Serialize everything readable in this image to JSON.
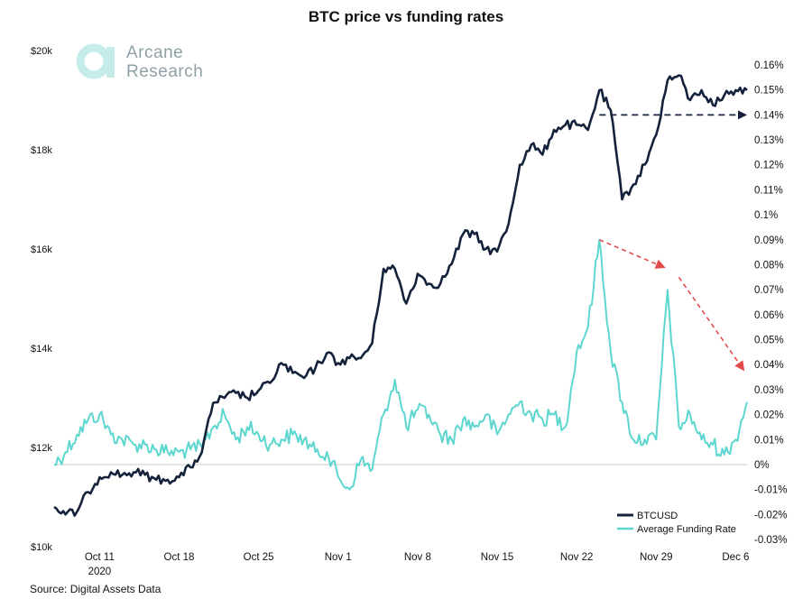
{
  "title": "BTC price vs funding rates",
  "source": "Source: Digital Assets Data",
  "logo": {
    "line1": "Arcane",
    "line2": "Research"
  },
  "colors": {
    "btc": "#14223b",
    "funding": "#5dd6cf",
    "annotation": "#e34b4b",
    "zero_line": "#c8c8c8"
  },
  "chart_data": {
    "type": "line",
    "title": "BTC price vs funding rates",
    "x_ticks": [
      "Oct 11",
      "Oct 18",
      "Oct 25",
      "Nov 1",
      "Nov 8",
      "Nov 15",
      "Nov 22",
      "Nov 29",
      "Dec 6"
    ],
    "x_year_label": "2020",
    "x_range": [
      "2020-10-07",
      "2020-12-07"
    ],
    "y_left": {
      "ticks": [
        "$10k",
        "$12k",
        "$14k",
        "$16k",
        "$18k",
        "$20k"
      ],
      "range": [
        10000,
        20000
      ]
    },
    "y_right": {
      "ticks": [
        "-0.03%",
        "-0.02%",
        "-0.01%",
        "0%",
        "0.01%",
        "0.02%",
        "0.03%",
        "0.04%",
        "0.05%",
        "0.06%",
        "0.07%",
        "0.08%",
        "0.09%",
        "0.1%",
        "0.11%",
        "0.12%",
        "0.13%",
        "0.14%",
        "0.15%",
        "0.16%"
      ],
      "range": [
        -0.03,
        0.165
      ]
    },
    "legend_position": "bottom-right",
    "series": [
      {
        "name": "BTCUSD",
        "axis": "left",
        "x": [
          "2020-10-07",
          "2020-10-08",
          "2020-10-09",
          "2020-10-10",
          "2020-10-11",
          "2020-10-12",
          "2020-10-13",
          "2020-10-14",
          "2020-10-15",
          "2020-10-16",
          "2020-10-17",
          "2020-10-18",
          "2020-10-19",
          "2020-10-20",
          "2020-10-21",
          "2020-10-22",
          "2020-10-23",
          "2020-10-24",
          "2020-10-25",
          "2020-10-26",
          "2020-10-27",
          "2020-10-28",
          "2020-10-29",
          "2020-10-30",
          "2020-10-31",
          "2020-11-01",
          "2020-11-02",
          "2020-11-03",
          "2020-11-04",
          "2020-11-05",
          "2020-11-06",
          "2020-11-07",
          "2020-11-08",
          "2020-11-09",
          "2020-11-10",
          "2020-11-11",
          "2020-11-12",
          "2020-11-13",
          "2020-11-14",
          "2020-11-15",
          "2020-11-16",
          "2020-11-17",
          "2020-11-18",
          "2020-11-19",
          "2020-11-20",
          "2020-11-21",
          "2020-11-22",
          "2020-11-23",
          "2020-11-24",
          "2020-11-25",
          "2020-11-26",
          "2020-11-27",
          "2020-11-28",
          "2020-11-29",
          "2020-11-30",
          "2020-12-01",
          "2020-12-02",
          "2020-12-03",
          "2020-12-04",
          "2020-12-05",
          "2020-12-06",
          "2020-12-07"
        ],
        "values": [
          10800,
          10650,
          10700,
          11100,
          11400,
          11500,
          11450,
          11500,
          11450,
          11350,
          11350,
          11400,
          11600,
          11900,
          12900,
          13000,
          13100,
          13000,
          13150,
          13300,
          13700,
          13500,
          13400,
          13600,
          13900,
          13700,
          13800,
          13800,
          14100,
          15600,
          15600,
          14900,
          15500,
          15300,
          15300,
          15700,
          16300,
          16300,
          16000,
          15950,
          16500,
          17700,
          18100,
          17900,
          18400,
          18500,
          18500,
          18400,
          19200,
          18800,
          17000,
          17300,
          17700,
          18300,
          19400,
          19500,
          19000,
          19200,
          18900,
          19100,
          19200,
          19200
        ]
      },
      {
        "name": "Average Funding Rate",
        "axis": "right",
        "x": [
          "2020-10-07",
          "2020-10-08",
          "2020-10-09",
          "2020-10-10",
          "2020-10-11",
          "2020-10-12",
          "2020-10-13",
          "2020-10-14",
          "2020-10-15",
          "2020-10-16",
          "2020-10-17",
          "2020-10-18",
          "2020-10-19",
          "2020-10-20",
          "2020-10-21",
          "2020-10-22",
          "2020-10-23",
          "2020-10-24",
          "2020-10-25",
          "2020-10-26",
          "2020-10-27",
          "2020-10-28",
          "2020-10-29",
          "2020-10-30",
          "2020-10-31",
          "2020-11-01",
          "2020-11-02",
          "2020-11-03",
          "2020-11-04",
          "2020-11-05",
          "2020-11-06",
          "2020-11-07",
          "2020-11-08",
          "2020-11-09",
          "2020-11-10",
          "2020-11-11",
          "2020-11-12",
          "2020-11-13",
          "2020-11-14",
          "2020-11-15",
          "2020-11-16",
          "2020-11-17",
          "2020-11-18",
          "2020-11-19",
          "2020-11-20",
          "2020-11-21",
          "2020-11-22",
          "2020-11-23",
          "2020-11-24",
          "2020-11-25",
          "2020-11-26",
          "2020-11-27",
          "2020-11-28",
          "2020-11-29",
          "2020-11-30",
          "2020-12-01",
          "2020-12-02",
          "2020-12-03",
          "2020-12-04",
          "2020-12-05",
          "2020-12-06",
          "2020-12-07"
        ],
        "values": [
          0.0,
          0.005,
          0.012,
          0.018,
          0.02,
          0.012,
          0.01,
          0.008,
          0.008,
          0.006,
          0.005,
          0.005,
          0.006,
          0.007,
          0.015,
          0.02,
          0.01,
          0.015,
          0.012,
          0.008,
          0.01,
          0.012,
          0.01,
          0.005,
          0.005,
          -0.005,
          -0.01,
          0.002,
          -0.002,
          0.02,
          0.034,
          0.015,
          0.022,
          0.02,
          0.012,
          0.01,
          0.018,
          0.015,
          0.02,
          0.012,
          0.02,
          0.025,
          0.02,
          0.018,
          0.02,
          0.015,
          0.045,
          0.055,
          0.09,
          0.045,
          0.025,
          0.01,
          0.01,
          0.01,
          0.07,
          0.015,
          0.02,
          0.01,
          0.008,
          0.004,
          0.01,
          0.025
        ]
      }
    ],
    "annotations": [
      {
        "type": "dashed-arrow",
        "color": "dark",
        "from": [
          "2020-11-24",
          0.14
        ],
        "to": [
          "2020-12-07",
          0.14
        ]
      },
      {
        "type": "dashed-arrow",
        "color": "red",
        "from": [
          "2020-11-24",
          0.09
        ],
        "to": [
          "2020-11-30",
          0.079
        ]
      },
      {
        "type": "dashed-arrow",
        "color": "red",
        "from": [
          "2020-12-01",
          0.075
        ],
        "to": [
          "2020-12-07",
          0.038
        ]
      }
    ]
  }
}
